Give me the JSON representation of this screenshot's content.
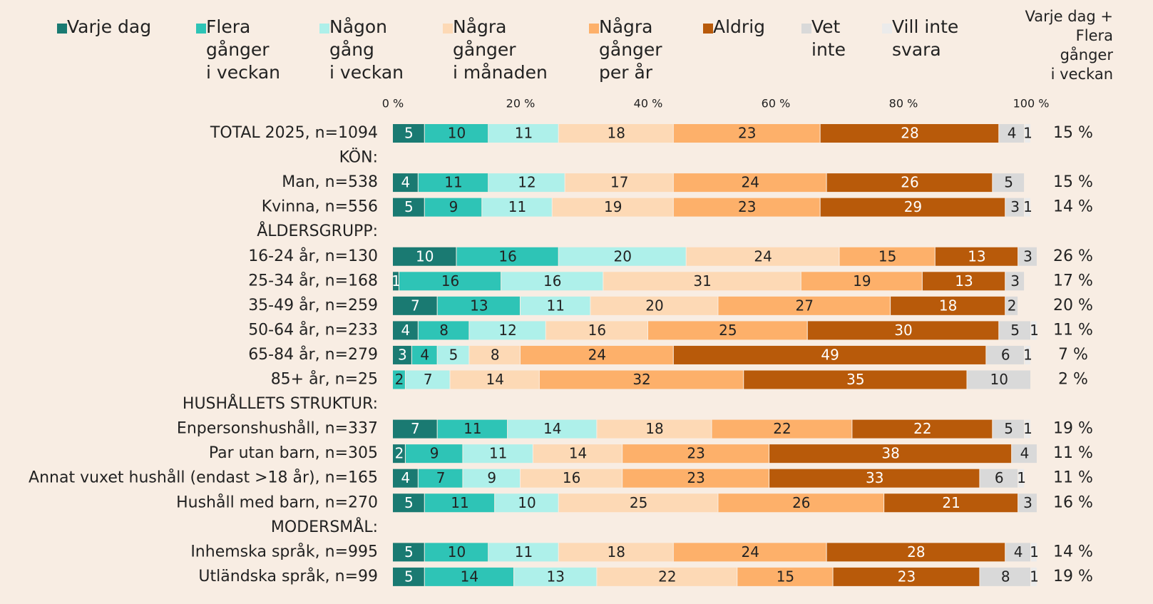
{
  "chart_data": {
    "type": "stacked-bar-horizontal",
    "categories": [
      "TOTAL 2025, n=1094",
      "KÖN:",
      "Man, n=538",
      "Kvinna, n=556",
      "ÅLDERSGRUPP:",
      "16-24 år, n=130",
      "25-34 år, n=168",
      "35-49 år, n=259",
      "50-64 år, n=233",
      "65-84 år, n=279",
      "85+ år, n=25",
      "HUSHÅLLETS STRUKTUR:",
      "Enpersonshushåll, n=337",
      "Par utan barn, n=305",
      "Annat vuxet hushåll (endast >18 år), n=165",
      "Hushåll med barn, n=270",
      "MODERSMÅL:",
      "Inhemska språk, n=995",
      "Utländska språk, n=99"
    ],
    "series": [
      {
        "name": "Varje dag",
        "color": "#1a7a72",
        "label_color": "#ffffff",
        "values": [
          5,
          null,
          4,
          5,
          null,
          10,
          1,
          7,
          4,
          3,
          null,
          null,
          7,
          2,
          4,
          5,
          null,
          5,
          5
        ]
      },
      {
        "name": "Flera\ngånger\ni veckan",
        "color": "#2ec4b6",
        "label_color": "#222222",
        "values": [
          10,
          null,
          11,
          9,
          null,
          16,
          16,
          13,
          8,
          4,
          2,
          null,
          11,
          9,
          7,
          11,
          null,
          10,
          14
        ]
      },
      {
        "name": "Någon\ngång\ni veckan",
        "color": "#aef0ea",
        "label_color": "#222222",
        "values": [
          11,
          null,
          12,
          11,
          null,
          20,
          16,
          11,
          12,
          5,
          7,
          null,
          14,
          11,
          9,
          10,
          null,
          11,
          13
        ]
      },
      {
        "name": "Några\ngånger\ni månaden",
        "color": "#fdd9b5",
        "label_color": "#222222",
        "values": [
          18,
          null,
          17,
          19,
          null,
          24,
          31,
          20,
          16,
          8,
          14,
          null,
          18,
          14,
          16,
          25,
          null,
          18,
          22
        ]
      },
      {
        "name": "Några\ngånger\nper år",
        "color": "#fdb06a",
        "label_color": "#222222",
        "values": [
          23,
          null,
          24,
          23,
          null,
          15,
          19,
          27,
          25,
          24,
          32,
          null,
          22,
          23,
          23,
          26,
          null,
          24,
          15
        ]
      },
      {
        "name": "Aldrig",
        "color": "#b85a0a",
        "label_color": "#ffffff",
        "values": [
          28,
          null,
          26,
          29,
          null,
          13,
          13,
          18,
          30,
          49,
          35,
          null,
          22,
          38,
          33,
          21,
          null,
          28,
          23
        ]
      },
      {
        "name": "Vet\ninte",
        "color": "#d9d9d9",
        "label_color": "#222222",
        "values": [
          4,
          null,
          5,
          3,
          null,
          3,
          3,
          2,
          5,
          6,
          10,
          null,
          5,
          4,
          6,
          3,
          null,
          4,
          8
        ]
      },
      {
        "name": "Vill inte\nsvara",
        "color": "#ebebeb",
        "label_color": "#222222",
        "values": [
          1,
          null,
          null,
          1,
          null,
          null,
          null,
          null,
          1,
          1,
          null,
          null,
          1,
          null,
          1,
          null,
          null,
          1,
          1
        ]
      }
    ],
    "xlim": [
      0,
      100
    ],
    "xticks": [
      {
        "value": 0,
        "label": "0 %"
      },
      {
        "value": 20,
        "label": "20 %"
      },
      {
        "value": 40,
        "label": "40 %"
      },
      {
        "value": 60,
        "label": "60 %"
      },
      {
        "value": 80,
        "label": "80 %"
      },
      {
        "value": 100,
        "label": "100 %"
      }
    ],
    "grid": false,
    "summary": {
      "title": "Varje dag +\nFlera\ngånger\ni veckan",
      "values": [
        15,
        null,
        15,
        14,
        null,
        26,
        17,
        20,
        11,
        7,
        2,
        null,
        19,
        11,
        11,
        16,
        null,
        14,
        19
      ],
      "value_labels": [
        "15 %",
        null,
        "15 %",
        "14 %",
        null,
        "26 %",
        "17 %",
        "20 %",
        "11 %",
        "7 %",
        "2 %",
        null,
        "19 %",
        "11 %",
        "11 %",
        "16 %",
        null,
        "14 %",
        "19 %"
      ]
    }
  }
}
